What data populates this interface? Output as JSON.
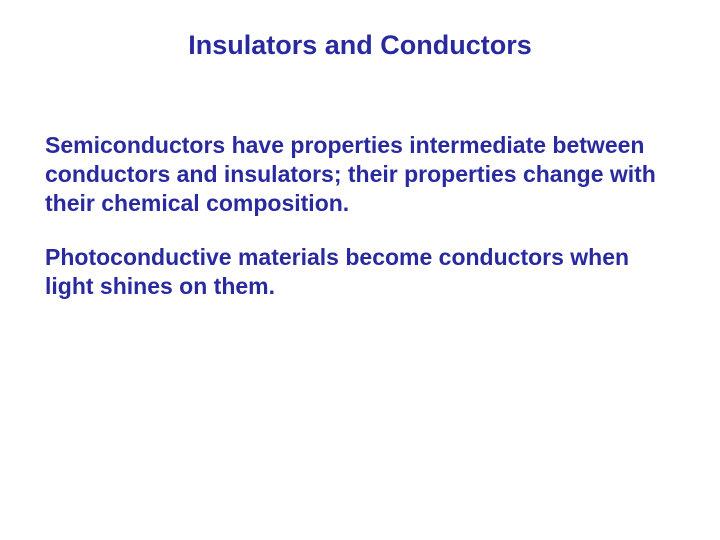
{
  "slide": {
    "title": "Insulators and Conductors",
    "paragraphs": [
      "Semiconductors have properties intermediate between conductors and insulators; their properties change with their chemical composition.",
      "Photoconductive materials become conductors when light shines on them."
    ]
  },
  "styles": {
    "title_color": "#2a2aa0",
    "title_fontsize": 27,
    "body_color": "#2a2aa0",
    "body_fontsize": 23,
    "background_color": "#ffffff"
  }
}
